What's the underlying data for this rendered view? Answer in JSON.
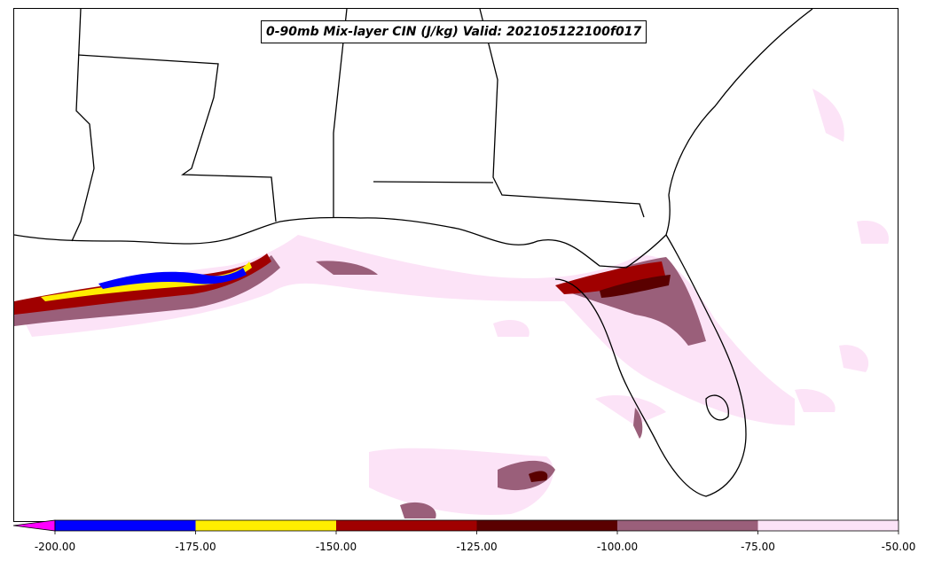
{
  "title": "0-90mb Mix-layer CIN (J/kg) Valid: 202105122100f017",
  "colorbar": {
    "extend": "min",
    "extend_color": "#ff00ff",
    "boundaries": [
      -200,
      -175,
      -150,
      -125,
      -100,
      -75,
      -50
    ],
    "tick_labels": [
      "-200.00",
      "-175.00",
      "-150.00",
      "-125.00",
      "-100.00",
      "-75.00",
      "-50.00"
    ],
    "colors": [
      "#0000ff",
      "#ffee00",
      "#a00000",
      "#5a0000",
      "#9a5f7a",
      "#fce3f7"
    ]
  },
  "map": {
    "coastline_color": "#000000",
    "land_color": "#ffffff",
    "ocean_color": "#ffffff"
  }
}
